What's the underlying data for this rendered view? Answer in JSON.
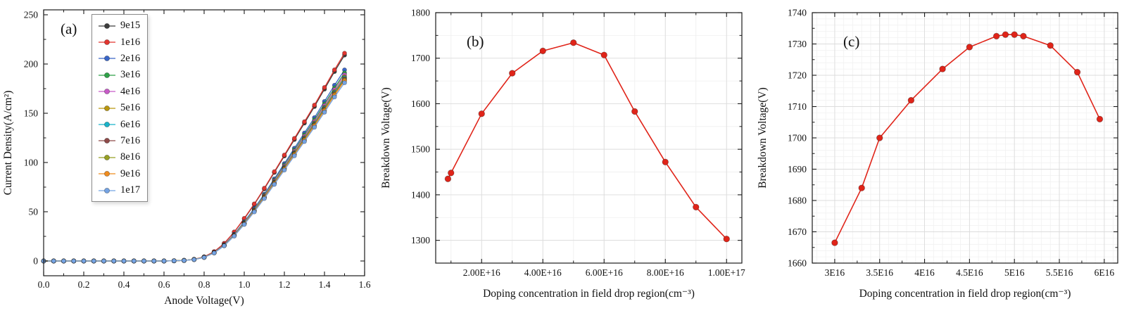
{
  "figure": {
    "background": "#ffffff"
  },
  "chart_data": [
    {
      "id": "a",
      "type": "line",
      "panel_label": "(a)",
      "xlabel": "Anode Voltage(V)",
      "ylabel": "Current Density(A/cm²)",
      "xlim": [
        0,
        1.6
      ],
      "ylim": [
        -15,
        255
      ],
      "xtick_values": [
        0,
        0.2,
        0.4,
        0.6,
        0.8,
        1.0,
        1.2,
        1.4,
        1.6
      ],
      "xtick_labels": [
        "0.0",
        "0.2",
        "0.4",
        "0.6",
        "0.8",
        "1.0",
        "1.2",
        "1.4",
        "1.6"
      ],
      "ytick_values": [
        0,
        50,
        100,
        150,
        200,
        250
      ],
      "ytick_labels": [
        "0",
        "50",
        "100",
        "150",
        "200",
        "250"
      ],
      "xminor_step": 0.1,
      "yminor_step": 25,
      "grid": null,
      "legend": {
        "show": true,
        "left": 130,
        "top": 20
      },
      "x": [
        0,
        0.05,
        0.1,
        0.15,
        0.2,
        0.25,
        0.3,
        0.35,
        0.4,
        0.45,
        0.5,
        0.55,
        0.6,
        0.65,
        0.7,
        0.75,
        0.8,
        0.85,
        0.9,
        0.95,
        1.0,
        1.05,
        1.1,
        1.15,
        1.2,
        1.25,
        1.3,
        1.35,
        1.4,
        1.45,
        1.5
      ],
      "series": [
        {
          "name": "9e15",
          "color": "#3d3d3d",
          "values": [
            0,
            0,
            0,
            0,
            0,
            0,
            0,
            0,
            0,
            0,
            0,
            0,
            0,
            0.2,
            0.6,
            1.7,
            4.2,
            9.4,
            17.8,
            29.3,
            42.8,
            57.5,
            73.2,
            89.9,
            106.6,
            123.3,
            140,
            156.8,
            174.5,
            192.3,
            209
          ]
        },
        {
          "name": "1e16",
          "color": "#e2352f",
          "values": [
            0,
            0,
            0,
            0,
            0,
            0,
            0,
            0,
            0,
            0,
            0,
            0,
            0,
            0.2,
            0.6,
            1.7,
            4.2,
            9.5,
            17.9,
            29.5,
            43.3,
            58,
            73.9,
            90.7,
            107.6,
            124.5,
            141.4,
            158.3,
            176.2,
            194.1,
            211
          ]
        },
        {
          "name": "2e16",
          "color": "#3a66c8",
          "values": [
            0,
            0,
            0,
            0,
            0,
            0,
            0,
            0,
            0,
            0,
            0,
            0,
            0,
            0.2,
            0.6,
            1.6,
            3.9,
            8.7,
            16.5,
            27.2,
            39.8,
            53.4,
            67.9,
            83.4,
            98.9,
            114.5,
            130,
            145.5,
            162,
            178.5,
            194
          ]
        },
        {
          "name": "3e16",
          "color": "#2fa148",
          "values": [
            0,
            0,
            0,
            0,
            0,
            0,
            0,
            0,
            0,
            0,
            0,
            0,
            0,
            0.2,
            0.6,
            1.5,
            3.8,
            8.6,
            16.2,
            26.7,
            39.2,
            52.5,
            66.9,
            82.1,
            97.4,
            112.7,
            128,
            143.3,
            159.5,
            175.7,
            191
          ]
        },
        {
          "name": "4e16",
          "color": "#c75bc7",
          "values": [
            0,
            0,
            0,
            0,
            0,
            0,
            0,
            0,
            0,
            0,
            0,
            0,
            0,
            0.2,
            0.6,
            1.5,
            3.8,
            8.5,
            16.1,
            26.5,
            38.7,
            52,
            66.2,
            81.3,
            96.4,
            111.5,
            126.6,
            141.8,
            157.8,
            173.9,
            189
          ]
        },
        {
          "name": "5e16",
          "color": "#b9970f",
          "values": [
            0,
            0,
            0,
            0,
            0,
            0,
            0,
            0,
            0,
            0,
            0,
            0,
            0,
            0.2,
            0.6,
            1.5,
            3.7,
            8.4,
            15.9,
            26.2,
            38.3,
            51.4,
            65.5,
            80.4,
            95.4,
            110.3,
            125.3,
            140.3,
            156.1,
            172,
            187
          ]
        },
        {
          "name": "6e16",
          "color": "#19b3c9",
          "values": [
            0,
            0,
            0,
            0,
            0,
            0,
            0,
            0,
            0,
            0,
            0,
            0,
            0,
            0.2,
            0.6,
            1.5,
            3.7,
            8.4,
            15.8,
            26,
            38.1,
            51.2,
            65.1,
            80,
            94.9,
            109.7,
            124.6,
            139.5,
            155.3,
            171.1,
            186
          ]
        },
        {
          "name": "7e16",
          "color": "#8e4a49",
          "values": [
            0,
            0,
            0,
            0,
            0,
            0,
            0,
            0,
            0,
            0,
            0,
            0,
            0,
            0.2,
            0.6,
            1.5,
            3.7,
            8.3,
            15.7,
            25.9,
            37.9,
            50.9,
            64.8,
            79.6,
            94.4,
            109.2,
            124,
            138.8,
            154.5,
            170.2,
            185
          ]
        },
        {
          "name": "8e16",
          "color": "#97a024",
          "values": [
            0,
            0,
            0,
            0,
            0,
            0,
            0,
            0,
            0,
            0,
            0,
            0,
            0,
            0.2,
            0.6,
            1.5,
            3.7,
            8.3,
            15.6,
            25.8,
            37.7,
            50.6,
            64.4,
            79.1,
            93.8,
            108.6,
            123.3,
            138,
            153.6,
            169.3,
            184
          ]
        },
        {
          "name": "9e16",
          "color": "#ef8c1f",
          "values": [
            0,
            0,
            0,
            0,
            0,
            0,
            0,
            0,
            0,
            0,
            0,
            0,
            0,
            0.2,
            0.5,
            1.5,
            3.7,
            8.2,
            15.6,
            25.6,
            37.5,
            50.3,
            64.1,
            78.7,
            93.3,
            108,
            122.6,
            137.3,
            152.8,
            168.4,
            183
          ]
        },
        {
          "name": "1e17",
          "color": "#74a3e3",
          "values": [
            0,
            0,
            0,
            0,
            0,
            0,
            0,
            0,
            0,
            0,
            0,
            0,
            0,
            0.2,
            0.5,
            1.4,
            3.6,
            8.1,
            15.4,
            25.3,
            37.1,
            49.8,
            63.4,
            77.8,
            92.3,
            106.8,
            121.3,
            135.8,
            151.1,
            166.5,
            181
          ]
        }
      ]
    },
    {
      "id": "b",
      "type": "line",
      "panel_label": "(b)",
      "xlabel": "Doping concentration in field drop region(cm⁻³)",
      "ylabel": "Breakdown Voltage(V)",
      "xlim": [
        5000000000000000.0,
        1.05e+17
      ],
      "ylim": [
        1250,
        1800
      ],
      "xtick_values": [
        2e+16,
        4e+16,
        6e+16,
        8e+16,
        1e+17
      ],
      "xtick_labels": [
        "2.00E+16",
        "4.00E+16",
        "6.00E+16",
        "8.00E+16",
        "1.00E+17"
      ],
      "ytick_values": [
        1300,
        1400,
        1500,
        1600,
        1700,
        1800
      ],
      "ytick_labels": [
        "1300",
        "1400",
        "1500",
        "1600",
        "1700",
        "1800"
      ],
      "xminor_step": 1e+16,
      "yminor_step": 50,
      "grid": {
        "major": true,
        "minor_x_step": 1e+16,
        "minor_y_step": 50,
        "major_color": "#dcdcdc",
        "minor_color": "#efefef"
      },
      "legend": {
        "show": false
      },
      "series": [
        {
          "name": "Breakdown Voltage",
          "color": "#e02419",
          "x": [
            9000000000000000.0,
            1e+16,
            2e+16,
            3e+16,
            4e+16,
            5e+16,
            6e+16,
            7e+16,
            8e+16,
            9e+16,
            1e+17
          ],
          "values": [
            1435,
            1448,
            1578,
            1667,
            1716,
            1734,
            1707,
            1583,
            1472,
            1373,
            1303
          ]
        }
      ]
    },
    {
      "id": "c",
      "type": "line",
      "panel_label": "(c)",
      "xlabel": "Doping concentration in field drop region(cm⁻³)",
      "ylabel": "Breakdown Voltage(V)",
      "xlim": [
        2.75e+16,
        6.15e+16
      ],
      "ylim": [
        1660,
        1740
      ],
      "xtick_values": [
        3e+16,
        3.5e+16,
        4e+16,
        4.5e+16,
        5e+16,
        5.5e+16,
        6e+16
      ],
      "xtick_labels": [
        "3E16",
        "3.5E16",
        "4E16",
        "4.5E16",
        "5E16",
        "5.5E16",
        "6E16"
      ],
      "ytick_values": [
        1660,
        1670,
        1680,
        1690,
        1700,
        1710,
        1720,
        1730,
        1740
      ],
      "ytick_labels": [
        "1660",
        "1670",
        "1680",
        "1690",
        "1700",
        "1710",
        "1720",
        "1730",
        "1740"
      ],
      "xminor_step": 2500000000000000.0,
      "yminor_step": 5,
      "grid": {
        "major": true,
        "minor_x_step": 1000000000000000.0,
        "minor_y_step": 2,
        "major_color": "#dcdcdc",
        "minor_color": "#f1f1f1"
      },
      "legend": {
        "show": false
      },
      "series": [
        {
          "name": "Breakdown Voltage",
          "color": "#e02419",
          "x": [
            3e+16,
            3.3e+16,
            3.5e+16,
            3.85e+16,
            4.2e+16,
            4.5e+16,
            4.8e+16,
            4.9e+16,
            5e+16,
            5.1e+16,
            5.4e+16,
            5.7e+16,
            5.95e+16
          ],
          "values": [
            1666.5,
            1684,
            1700,
            1712,
            1722,
            1729,
            1732.5,
            1733,
            1733,
            1732.5,
            1729.5,
            1721,
            1706
          ]
        }
      ]
    }
  ]
}
